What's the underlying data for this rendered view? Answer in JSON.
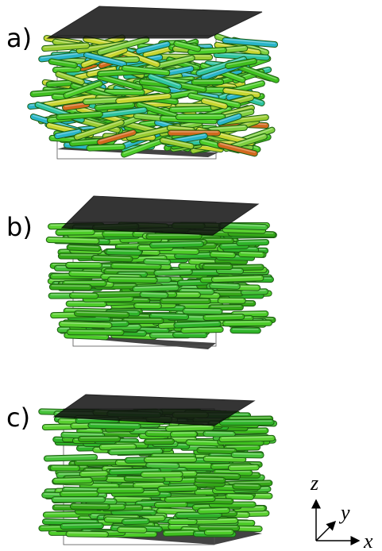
{
  "panels": [
    {
      "label": "a)"
    },
    {
      "label": "b)"
    },
    {
      "label": "c)"
    }
  ],
  "axes": {
    "z": "z",
    "y": "y",
    "x": "x"
  }
}
